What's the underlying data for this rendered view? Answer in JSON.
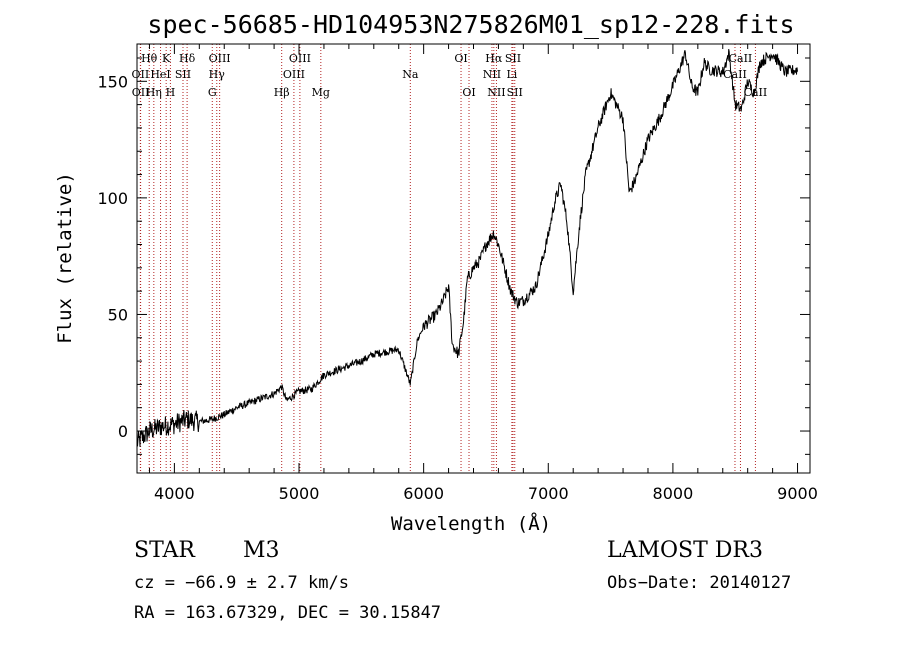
{
  "chart_data": {
    "type": "line",
    "title": "spec-56685-HD104953N275826M01_sp12-228.fits",
    "xlabel": "Wavelength (Å)",
    "ylabel": "Flux (relative)",
    "xlim": [
      3700,
      9100
    ],
    "ylim": [
      -18,
      166
    ],
    "x_ticks": [
      4000,
      5000,
      6000,
      7000,
      8000,
      9000
    ],
    "x_tick_labels": [
      "4000",
      "5000",
      "6000",
      "7000",
      "8000",
      "9000"
    ],
    "y_ticks": [
      0,
      50,
      100,
      150
    ],
    "y_tick_labels": [
      "0",
      "50",
      "100",
      "150"
    ],
    "series": [
      {
        "name": "flux",
        "x": [
          3700,
          3800,
          3900,
          4000,
          4100,
          4200,
          4300,
          4400,
          4500,
          4600,
          4700,
          4800,
          4860,
          4900,
          5000,
          5100,
          5200,
          5300,
          5400,
          5500,
          5600,
          5700,
          5800,
          5893,
          5950,
          6000,
          6100,
          6150,
          6200,
          6230,
          6280,
          6320,
          6350,
          6400,
          6450,
          6500,
          6563,
          6600,
          6650,
          6700,
          6750,
          6800,
          6900,
          7000,
          7050,
          7100,
          7150,
          7200,
          7250,
          7300,
          7400,
          7500,
          7600,
          7650,
          7700,
          7800,
          7900,
          8000,
          8100,
          8150,
          8200,
          8250,
          8300,
          8400,
          8450,
          8500,
          8550,
          8600,
          8650,
          8700,
          8800,
          8900,
          9000
        ],
        "y": [
          -5,
          0,
          2,
          3,
          5,
          4,
          5,
          7,
          10,
          12,
          14,
          16,
          19,
          13,
          17,
          18,
          24,
          26,
          28,
          30,
          33,
          34,
          35,
          20,
          39,
          45,
          50,
          55,
          62,
          37,
          33,
          47,
          65,
          70,
          73,
          80,
          85,
          80,
          70,
          60,
          55,
          56,
          62,
          84,
          98,
          106,
          90,
          60,
          88,
          110,
          130,
          145,
          134,
          102,
          108,
          125,
          135,
          148,
          162,
          148,
          145,
          158,
          155,
          154,
          162,
          140,
          138,
          150,
          145,
          158,
          162,
          154,
          155
        ]
      }
    ],
    "lines": [
      {
        "name": "Hθ",
        "wavelength": 3798,
        "row": 1
      },
      {
        "name": "OII",
        "wavelength": 3727,
        "row": 2
      },
      {
        "name": "OII",
        "wavelength": 3729,
        "row": 3
      },
      {
        "name": "Hη",
        "wavelength": 3835,
        "row": 3
      },
      {
        "name": "HeI",
        "wavelength": 3889,
        "row": 2
      },
      {
        "name": "K",
        "wavelength": 3934,
        "row": 1
      },
      {
        "name": "H",
        "wavelength": 3968,
        "row": 3
      },
      {
        "name": "SII",
        "wavelength": 4069,
        "row": 2
      },
      {
        "name": "Hδ",
        "wavelength": 4102,
        "row": 1
      },
      {
        "name": "OIII",
        "wavelength": 4363,
        "row": 1
      },
      {
        "name": "Hγ",
        "wavelength": 4340,
        "row": 2
      },
      {
        "name": "G",
        "wavelength": 4304,
        "row": 3
      },
      {
        "name": "Hβ",
        "wavelength": 4861,
        "row": 3
      },
      {
        "name": "OIII",
        "wavelength": 5007,
        "row": 1
      },
      {
        "name": "OIII",
        "wavelength": 4959,
        "row": 2
      },
      {
        "name": "Mg",
        "wavelength": 5175,
        "row": 3
      },
      {
        "name": "Na",
        "wavelength": 5893,
        "row": 2
      },
      {
        "name": "OI",
        "wavelength": 6300,
        "row": 1
      },
      {
        "name": "OI",
        "wavelength": 6364,
        "row": 3
      },
      {
        "name": "Hα",
        "wavelength": 6563,
        "row": 1
      },
      {
        "name": "NII",
        "wavelength": 6548,
        "row": 2
      },
      {
        "name": "NII",
        "wavelength": 6584,
        "row": 3
      },
      {
        "name": "SII",
        "wavelength": 6717,
        "row": 1
      },
      {
        "name": "Li",
        "wavelength": 6708,
        "row": 2
      },
      {
        "name": "SII",
        "wavelength": 6731,
        "row": 3
      },
      {
        "name": "CaII",
        "wavelength": 8542,
        "row": 1
      },
      {
        "name": "CaII",
        "wavelength": 8498,
        "row": 2
      },
      {
        "name": "CaII",
        "wavelength": 8662,
        "row": 3
      }
    ]
  },
  "info": {
    "class": "STAR",
    "subclass": "M3",
    "cz": "cz = −66.9 ± 2.7 km/s",
    "radec": "RA = 163.67329, DEC =  30.15847",
    "survey": "LAMOST DR3",
    "obs_date": "Obs−Date: 20140127"
  }
}
